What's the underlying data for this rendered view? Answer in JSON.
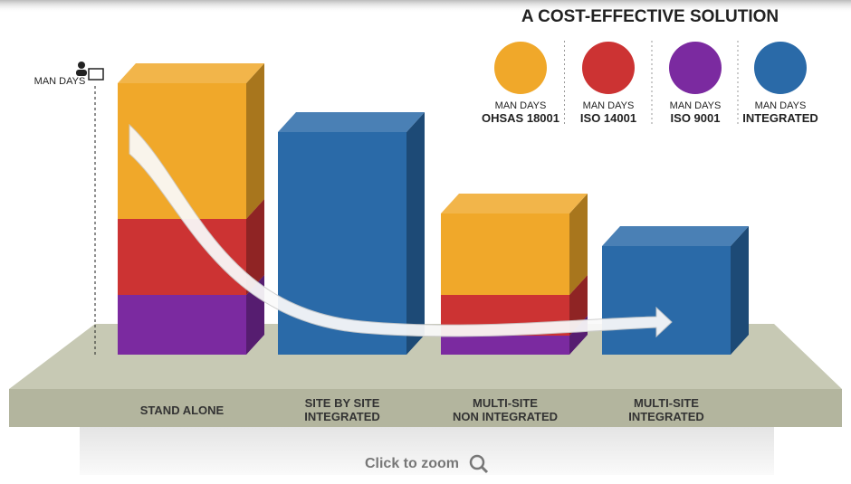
{
  "chart_data": {
    "type": "stacked-bar-3d",
    "title": "A COST-EFFECTIVE SOLUTION",
    "y_label": "MAN DAYS",
    "legend_label": "MAN DAYS",
    "categories": [
      "STAND ALONE",
      "SITE BY SITE\nINTEGRATED",
      "MULTI-SITE\nNON INTEGRATED",
      "MULTI-SITE\nINTEGRATED"
    ],
    "series": [
      {
        "name": "OHSAS 18001",
        "color": "#f0a82a",
        "values": [
          50,
          null,
          30,
          null
        ]
      },
      {
        "name": "ISO 14001",
        "color": "#cc3333",
        "values": [
          28,
          null,
          15,
          null
        ]
      },
      {
        "name": "ISO 9001",
        "color": "#7b2aa0",
        "values": [
          22,
          null,
          7,
          null
        ]
      },
      {
        "name": "INTEGRATED",
        "color": "#2a6aa8",
        "values": [
          null,
          82,
          null,
          40
        ]
      }
    ],
    "ylim": [
      0,
      100
    ],
    "zoom_text": "Click to zoom"
  }
}
